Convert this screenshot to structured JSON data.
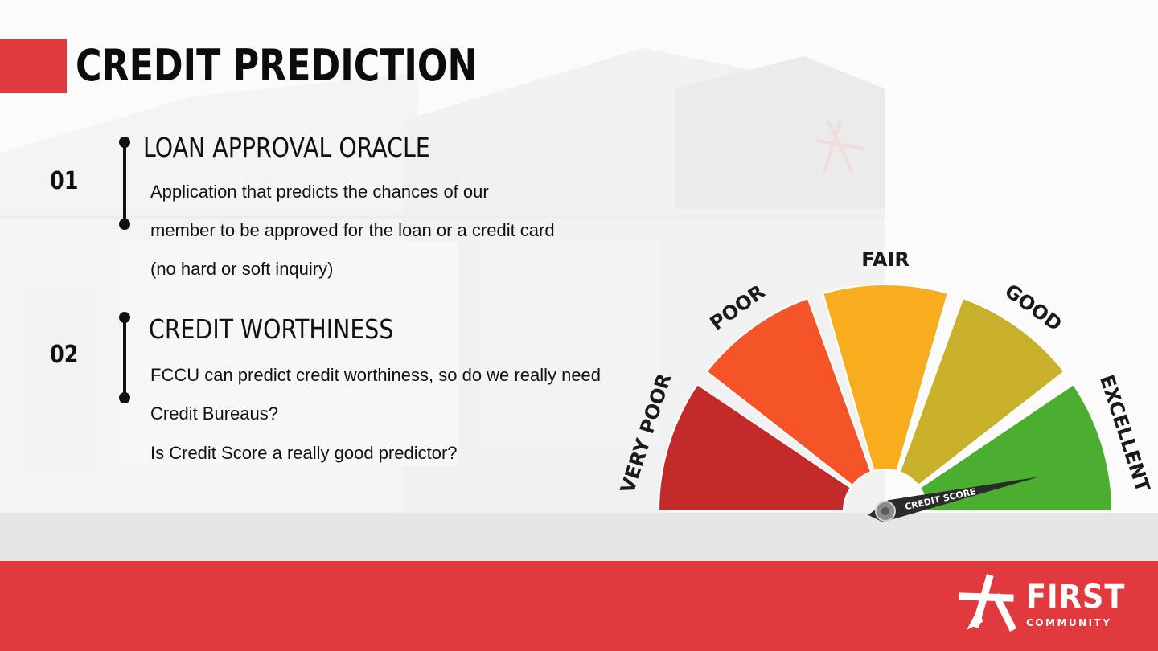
{
  "slide": {
    "title": "CREDIT PREDICTION",
    "accent_color": "#e0393e"
  },
  "items": [
    {
      "number": "01",
      "heading": "LOAN APPROVAL ORACLE",
      "lines": [
        "Application that predicts the chances of our",
        "member to be approved for the loan or a credit card",
        "(no hard or soft inquiry)"
      ]
    },
    {
      "number": "02",
      "heading": "CREDIT WORTHINESS",
      "lines": [
        "FCCU can predict credit worthiness, so do we really need",
        "Credit Bureaus?",
        "Is Credit Score a really good predictor?"
      ]
    }
  ],
  "gauge": {
    "needle_label": "CREDIT SCORE",
    "needle_level": 0.93,
    "segments": [
      {
        "label": "VERY POOR",
        "color": "#c32b2b"
      },
      {
        "label": "POOR",
        "color": "#f45428"
      },
      {
        "label": "FAIR",
        "color": "#f8ad1e"
      },
      {
        "label": "GOOD",
        "color": "#c9b02b"
      },
      {
        "label": "EXCELLENT",
        "color": "#4cae31"
      }
    ]
  },
  "logo": {
    "name": "FIRST",
    "tagline": "COMMUNITY",
    "icon": "star-icon"
  }
}
